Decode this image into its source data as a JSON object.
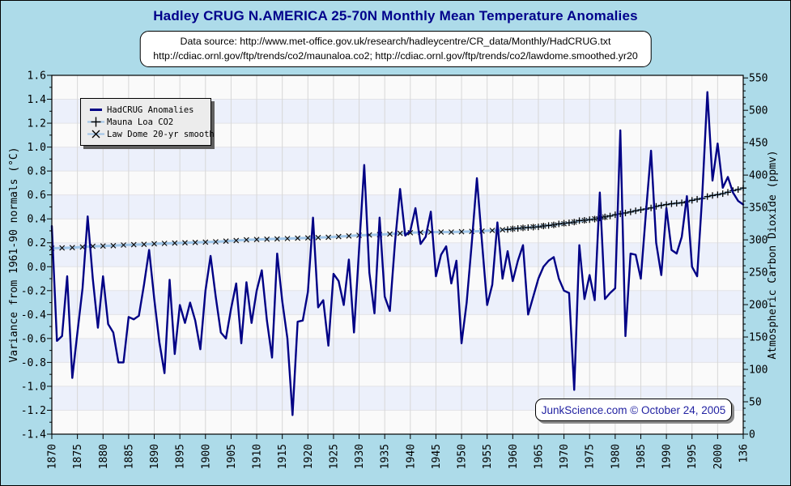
{
  "header": {
    "title": "Hadley CRUG N.AMERICA 25-70N Monthly Mean Temperature Anomalies"
  },
  "source_box": {
    "line1": "Data source: http://www.met-office.gov.uk/research/hadleycentre/CR_data/Monthly/HadCRUG.txt",
    "line2": "http://cdiac.ornl.gov/ftp/trends/co2/maunaloa.co2; http://cdiac.ornl.gov/ftp/trends/co2/lawdome.smoothed.yr20"
  },
  "stamp": {
    "text": "JunkScience.com © October 24, 2005"
  },
  "colors": {
    "page_bg": "#addbe9",
    "title_text": "#00008b",
    "stamp_text": "#2222a2",
    "anomaly_line": "#000085",
    "co2_line": "#9fc5e8",
    "marker": "#000000",
    "band_light": "#fafafa",
    "band_blue": "#ecf0fb",
    "grid_vertical": "#d7d7d7",
    "band_boundary": "#e3e3e8",
    "frame": "#000000"
  },
  "chart_data": {
    "type": "line",
    "title": "Hadley CRUG N.AMERICA 25-70N Monthly Mean Temperature Anomalies",
    "x_axis": {
      "min": 1870,
      "max": 2005,
      "tick_step": 5,
      "tick_labels": [
        "1870",
        "1875",
        "1880",
        "1885",
        "1890",
        "1895",
        "1900",
        "1905",
        "1910",
        "1915",
        "1920",
        "1925",
        "1930",
        "1935",
        "1940",
        "1945",
        "1950",
        "1955",
        "1960",
        "1965",
        "1970",
        "1975",
        "1980",
        "1985",
        "1990",
        "1995",
        "2000",
        "136"
      ]
    },
    "y_left": {
      "label": "Variance from 1961-90 normals (°C)",
      "min": -1.4,
      "max": 1.6,
      "tick_step": 0.2,
      "minor_step": 0.1
    },
    "y_right": {
      "label": "Atmospheric Carbon Dioxide (ppmv)",
      "min": 0,
      "max": 550,
      "tick_step": 50,
      "minor_step": 10,
      "top_value": 554
    },
    "bands": {
      "value_step": 0.2,
      "even_color": "#fafafa",
      "odd_color": "#ecf0fb"
    },
    "grid": {
      "vertical_color": "#d7d7d7",
      "band_line_color": "#e3e3e8"
    },
    "series": [
      {
        "name": "HadCRUG Anomalies",
        "axis": "left",
        "marker": "none",
        "line_color": "#000085",
        "line_width": 2.4,
        "x_start": 1870,
        "x_step": 1,
        "values": [
          0.34,
          -0.62,
          -0.58,
          -0.08,
          -0.93,
          -0.55,
          -0.18,
          0.42,
          -0.1,
          -0.51,
          -0.08,
          -0.48,
          -0.55,
          -0.8,
          -0.8,
          -0.42,
          -0.44,
          -0.41,
          -0.15,
          0.14,
          -0.27,
          -0.63,
          -0.89,
          -0.11,
          -0.73,
          -0.32,
          -0.47,
          -0.3,
          -0.45,
          -0.69,
          -0.2,
          0.09,
          -0.25,
          -0.55,
          -0.6,
          -0.35,
          -0.14,
          -0.64,
          -0.13,
          -0.47,
          -0.2,
          -0.03,
          -0.45,
          -0.76,
          0.11,
          -0.29,
          -0.6,
          -1.24,
          -0.46,
          -0.45,
          -0.21,
          0.41,
          -0.34,
          -0.28,
          -0.66,
          -0.06,
          -0.12,
          -0.32,
          0.06,
          -0.55,
          0.15,
          0.85,
          -0.05,
          -0.39,
          0.41,
          -0.25,
          -0.37,
          0.2,
          0.65,
          0.26,
          0.3,
          0.49,
          0.19,
          0.25,
          0.46,
          -0.08,
          0.1,
          0.17,
          -0.14,
          0.05,
          -0.64,
          -0.3,
          0.2,
          0.74,
          0.2,
          -0.32,
          -0.15,
          0.37,
          -0.1,
          0.13,
          -0.12,
          0.05,
          0.18,
          -0.4,
          -0.25,
          -0.1,
          0.0,
          0.05,
          0.08,
          -0.1,
          -0.2,
          -0.22,
          -1.03,
          0.18,
          -0.27,
          -0.07,
          -0.28,
          0.62,
          -0.27,
          -0.22,
          -0.18,
          1.14,
          -0.58,
          0.11,
          0.1,
          -0.1,
          0.45,
          0.97,
          0.2,
          -0.07,
          0.49,
          0.14,
          0.11,
          0.25,
          0.59,
          0.0,
          -0.08,
          0.6,
          1.46,
          0.72,
          1.03,
          0.66,
          0.75,
          0.62,
          0.55,
          0.52
        ]
      },
      {
        "name": "Mauna Loa CO2",
        "axis": "right",
        "marker": "plus",
        "line_color": "#9fc5e8",
        "line_width": 3,
        "marker_color": "#000000",
        "x_start": 1959,
        "x_step": 1,
        "values": [
          315.98,
          316.91,
          317.64,
          318.45,
          318.99,
          319.62,
          320.04,
          321.37,
          322.18,
          323.05,
          324.62,
          325.68,
          326.32,
          327.46,
          329.68,
          330.19,
          331.12,
          332.03,
          333.84,
          335.41,
          336.84,
          338.76,
          340.12,
          341.48,
          343.15,
          344.87,
          346.35,
          347.61,
          349.31,
          351.69,
          353.2,
          354.45,
          355.7,
          356.54,
          357.21,
          358.96,
          360.97,
          362.74,
          363.88,
          366.84,
          368.54,
          369.71,
          371.32,
          373.45,
          375.98,
          377.7,
          379.98
        ]
      },
      {
        "name": "Law Dome 20-yr smooth",
        "axis": "right",
        "marker": "x",
        "line_color": "#9fc5e8",
        "line_width": 3,
        "marker_color": "#111111",
        "x_start": 1870,
        "x_step": 2,
        "values": [
          287,
          287.5,
          288,
          289,
          290,
          290.5,
          291,
          292,
          292.5,
          293,
          294,
          294.5,
          295,
          295.5,
          296,
          296.5,
          297,
          298,
          299,
          300,
          300.5,
          301,
          301.5,
          302,
          302.5,
          303,
          303.5,
          304,
          305,
          306,
          307,
          307.5,
          308,
          309,
          310,
          311,
          311.5,
          312,
          312,
          312,
          312.5,
          313,
          313.5,
          314.5,
          315.5,
          317,
          318.5,
          320,
          321.5,
          323,
          325,
          327.5,
          330,
          332.5,
          335
        ]
      }
    ]
  }
}
